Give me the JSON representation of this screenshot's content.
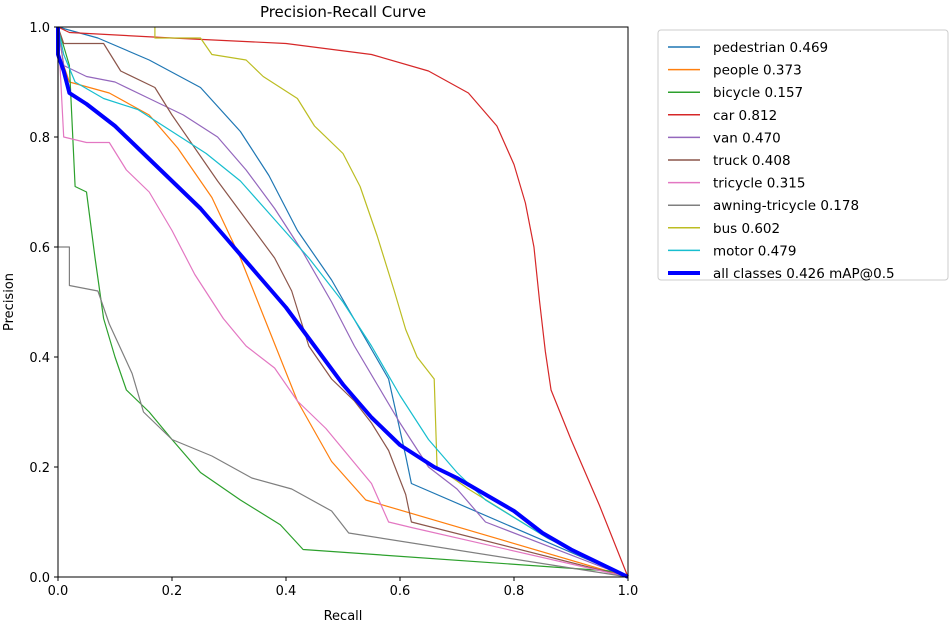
{
  "chart_data": {
    "type": "line",
    "title": "Precision-Recall Curve",
    "xlabel": "Recall",
    "ylabel": "Precision",
    "xlim": [
      0,
      1
    ],
    "ylim": [
      0,
      1
    ],
    "xticks": [
      "0.0",
      "0.2",
      "0.4",
      "0.6",
      "0.8",
      "1.0"
    ],
    "yticks": [
      "0.0",
      "0.2",
      "0.4",
      "0.6",
      "0.8",
      "1.0"
    ],
    "grid": false,
    "legend_position": "outside-right",
    "series": [
      {
        "name": "pedestrian 0.469",
        "color": "#1f77b4",
        "points": [
          [
            0,
            1
          ],
          [
            0.07,
            0.98
          ],
          [
            0.16,
            0.94
          ],
          [
            0.25,
            0.89
          ],
          [
            0.32,
            0.81
          ],
          [
            0.37,
            0.73
          ],
          [
            0.42,
            0.63
          ],
          [
            0.48,
            0.54
          ],
          [
            0.53,
            0.45
          ],
          [
            0.58,
            0.36
          ],
          [
            0.61,
            0.22
          ],
          [
            0.62,
            0.17
          ],
          [
            1,
            0
          ]
        ]
      },
      {
        "name": "people 0.373",
        "color": "#ff7f0e",
        "points": [
          [
            0,
            1
          ],
          [
            0.01,
            0.93
          ],
          [
            0.02,
            0.9
          ],
          [
            0.09,
            0.88
          ],
          [
            0.16,
            0.84
          ],
          [
            0.21,
            0.78
          ],
          [
            0.27,
            0.69
          ],
          [
            0.32,
            0.58
          ],
          [
            0.37,
            0.45
          ],
          [
            0.42,
            0.32
          ],
          [
            0.48,
            0.21
          ],
          [
            0.54,
            0.14
          ],
          [
            1,
            0
          ]
        ]
      },
      {
        "name": "bicycle 0.157",
        "color": "#2ca02c",
        "points": [
          [
            0,
            1
          ],
          [
            0.02,
            0.93
          ],
          [
            0.03,
            0.71
          ],
          [
            0.05,
            0.7
          ],
          [
            0.065,
            0.58
          ],
          [
            0.08,
            0.47
          ],
          [
            0.1,
            0.4
          ],
          [
            0.12,
            0.34
          ],
          [
            0.16,
            0.3
          ],
          [
            0.2,
            0.25
          ],
          [
            0.25,
            0.19
          ],
          [
            0.32,
            0.14
          ],
          [
            0.39,
            0.095
          ],
          [
            0.43,
            0.05
          ],
          [
            0.98,
            0.01
          ],
          [
            1,
            0
          ]
        ]
      },
      {
        "name": "car 0.812",
        "color": "#d62728",
        "points": [
          [
            0,
            1
          ],
          [
            0.02,
            0.99
          ],
          [
            0.2,
            0.98
          ],
          [
            0.4,
            0.97
          ],
          [
            0.55,
            0.95
          ],
          [
            0.65,
            0.92
          ],
          [
            0.72,
            0.88
          ],
          [
            0.77,
            0.82
          ],
          [
            0.8,
            0.75
          ],
          [
            0.82,
            0.68
          ],
          [
            0.835,
            0.6
          ],
          [
            0.845,
            0.5
          ],
          [
            0.855,
            0.41
          ],
          [
            0.865,
            0.34
          ],
          [
            0.9,
            0.25
          ],
          [
            0.95,
            0.13
          ],
          [
            1,
            0
          ]
        ]
      },
      {
        "name": "van 0.470",
        "color": "#9467bd",
        "points": [
          [
            0,
            1
          ],
          [
            0.01,
            0.93
          ],
          [
            0.05,
            0.91
          ],
          [
            0.1,
            0.9
          ],
          [
            0.16,
            0.87
          ],
          [
            0.22,
            0.84
          ],
          [
            0.28,
            0.8
          ],
          [
            0.33,
            0.74
          ],
          [
            0.38,
            0.67
          ],
          [
            0.43,
            0.59
          ],
          [
            0.48,
            0.5
          ],
          [
            0.52,
            0.42
          ],
          [
            0.56,
            0.35
          ],
          [
            0.6,
            0.28
          ],
          [
            0.65,
            0.2
          ],
          [
            0.7,
            0.16
          ],
          [
            0.75,
            0.1
          ],
          [
            1,
            0
          ]
        ]
      },
      {
        "name": "truck 0.408",
        "color": "#8c564b",
        "points": [
          [
            0,
            1
          ],
          [
            0.01,
            0.97
          ],
          [
            0.08,
            0.97
          ],
          [
            0.11,
            0.92
          ],
          [
            0.17,
            0.89
          ],
          [
            0.2,
            0.84
          ],
          [
            0.24,
            0.78
          ],
          [
            0.28,
            0.72
          ],
          [
            0.33,
            0.65
          ],
          [
            0.38,
            0.58
          ],
          [
            0.41,
            0.52
          ],
          [
            0.44,
            0.42
          ],
          [
            0.48,
            0.36
          ],
          [
            0.52,
            0.32
          ],
          [
            0.55,
            0.28
          ],
          [
            0.58,
            0.23
          ],
          [
            0.61,
            0.15
          ],
          [
            0.62,
            0.1
          ],
          [
            1,
            0
          ]
        ]
      },
      {
        "name": "tricycle 0.315",
        "color": "#e377c2",
        "points": [
          [
            0,
            1
          ],
          [
            0.01,
            0.8
          ],
          [
            0.05,
            0.79
          ],
          [
            0.09,
            0.79
          ],
          [
            0.12,
            0.74
          ],
          [
            0.16,
            0.7
          ],
          [
            0.2,
            0.63
          ],
          [
            0.24,
            0.55
          ],
          [
            0.29,
            0.47
          ],
          [
            0.33,
            0.42
          ],
          [
            0.38,
            0.38
          ],
          [
            0.42,
            0.32
          ],
          [
            0.47,
            0.27
          ],
          [
            0.51,
            0.22
          ],
          [
            0.55,
            0.17
          ],
          [
            0.58,
            0.1
          ],
          [
            0.62,
            0.09
          ],
          [
            1,
            0
          ]
        ]
      },
      {
        "name": "awning-tricycle 0.178",
        "color": "#7f7f7f",
        "points": [
          [
            0,
            1
          ],
          [
            0,
            0.6
          ],
          [
            0.02,
            0.6
          ],
          [
            0.02,
            0.53
          ],
          [
            0.07,
            0.52
          ],
          [
            0.09,
            0.46
          ],
          [
            0.13,
            0.37
          ],
          [
            0.15,
            0.3
          ],
          [
            0.2,
            0.25
          ],
          [
            0.27,
            0.22
          ],
          [
            0.34,
            0.18
          ],
          [
            0.41,
            0.16
          ],
          [
            0.48,
            0.12
          ],
          [
            0.51,
            0.08
          ],
          [
            1,
            0
          ]
        ]
      },
      {
        "name": "bus 0.602",
        "color": "#bcbd22",
        "points": [
          [
            0.17,
            1
          ],
          [
            0.17,
            0.98
          ],
          [
            0.25,
            0.98
          ],
          [
            0.27,
            0.95
          ],
          [
            0.33,
            0.94
          ],
          [
            0.36,
            0.91
          ],
          [
            0.42,
            0.87
          ],
          [
            0.45,
            0.82
          ],
          [
            0.5,
            0.77
          ],
          [
            0.53,
            0.71
          ],
          [
            0.56,
            0.62
          ],
          [
            0.59,
            0.52
          ],
          [
            0.61,
            0.45
          ],
          [
            0.63,
            0.4
          ],
          [
            0.66,
            0.36
          ],
          [
            0.665,
            0.2
          ],
          [
            0.72,
            0.16
          ],
          [
            0.86,
            0.07
          ],
          [
            1,
            0
          ]
        ]
      },
      {
        "name": "motor 0.479",
        "color": "#17becf",
        "points": [
          [
            0,
            1
          ],
          [
            0.01,
            0.95
          ],
          [
            0.03,
            0.9
          ],
          [
            0.08,
            0.87
          ],
          [
            0.14,
            0.85
          ],
          [
            0.2,
            0.81
          ],
          [
            0.26,
            0.77
          ],
          [
            0.32,
            0.72
          ],
          [
            0.38,
            0.65
          ],
          [
            0.44,
            0.58
          ],
          [
            0.5,
            0.5
          ],
          [
            0.55,
            0.42
          ],
          [
            0.6,
            0.33
          ],
          [
            0.65,
            0.25
          ],
          [
            0.7,
            0.19
          ],
          [
            0.75,
            0.14
          ],
          [
            0.86,
            0.07
          ],
          [
            1,
            0
          ]
        ]
      },
      {
        "name": "all classes 0.426 mAP@0.5",
        "color": "#0000ff",
        "bold": true,
        "points": [
          [
            0,
            1
          ],
          [
            0,
            0.95
          ],
          [
            0.01,
            0.92
          ],
          [
            0.02,
            0.88
          ],
          [
            0.05,
            0.86
          ],
          [
            0.1,
            0.82
          ],
          [
            0.15,
            0.77
          ],
          [
            0.2,
            0.72
          ],
          [
            0.25,
            0.67
          ],
          [
            0.3,
            0.61
          ],
          [
            0.35,
            0.55
          ],
          [
            0.4,
            0.49
          ],
          [
            0.45,
            0.42
          ],
          [
            0.5,
            0.35
          ],
          [
            0.55,
            0.29
          ],
          [
            0.6,
            0.24
          ],
          [
            0.66,
            0.2
          ],
          [
            0.7,
            0.18
          ],
          [
            0.75,
            0.15
          ],
          [
            0.8,
            0.12
          ],
          [
            0.85,
            0.08
          ],
          [
            0.9,
            0.05
          ],
          [
            1,
            0
          ]
        ]
      }
    ]
  }
}
